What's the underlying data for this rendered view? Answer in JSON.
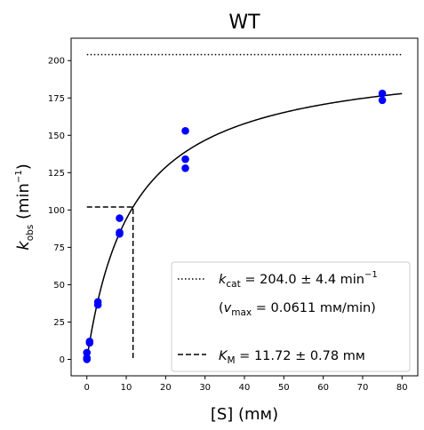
{
  "chart_data": {
    "type": "scatter",
    "title": "WT",
    "xlabel": "[S] (mм)",
    "ylabel": "k_obs (min⁻¹)",
    "ylabel_parts": {
      "k": "k",
      "sub": "obs",
      "unit_open": " (min",
      "sup": "−1",
      "unit_close": ")"
    },
    "xlim": [
      -4,
      84
    ],
    "ylim": [
      -11,
      215
    ],
    "x_ticks": [
      0,
      10,
      20,
      30,
      40,
      50,
      60,
      70,
      80
    ],
    "y_ticks": [
      0,
      25,
      50,
      75,
      100,
      125,
      150,
      175,
      200
    ],
    "series": [
      {
        "type": "scatter",
        "color": "#0000ff",
        "points": [
          [
            0,
            0
          ],
          [
            0,
            1
          ],
          [
            0,
            4.5
          ],
          [
            0.7,
            11
          ],
          [
            0.7,
            12
          ],
          [
            2.8,
            36.5
          ],
          [
            2.8,
            38.5
          ],
          [
            8.3,
            84
          ],
          [
            8.3,
            85
          ],
          [
            8.3,
            94.5
          ],
          [
            25,
            128
          ],
          [
            25,
            134
          ],
          [
            25,
            153
          ],
          [
            75,
            173.5
          ],
          [
            75,
            178
          ]
        ]
      },
      {
        "type": "line",
        "style": "solid",
        "color": "#000000",
        "model": "michaelis-menten",
        "kcat": 204.0,
        "km": 11.72,
        "x_range": [
          0,
          80
        ]
      },
      {
        "type": "line",
        "style": "dotted",
        "color": "#000000",
        "points": [
          [
            0,
            204
          ],
          [
            80,
            204
          ]
        ]
      },
      {
        "type": "line",
        "style": "dashed",
        "color": "#000000",
        "points": [
          [
            0,
            102
          ],
          [
            11.72,
            102
          ],
          [
            11.72,
            0
          ]
        ]
      }
    ],
    "legend": {
      "position": "lower-right",
      "entries": [
        {
          "style": "dotted",
          "k": "k",
          "sub": "cat",
          "value": " = 204.0 ± 4.4 min",
          "sup": "−1"
        },
        {
          "style": "none",
          "prefix": "(",
          "k": "v",
          "sub": "max",
          "value": " = 0.0611 mм/min)"
        },
        {
          "style": "dashed",
          "k": "K",
          "sub": "M",
          "value": " = 11.72 ± 0.78 mм"
        }
      ]
    }
  }
}
